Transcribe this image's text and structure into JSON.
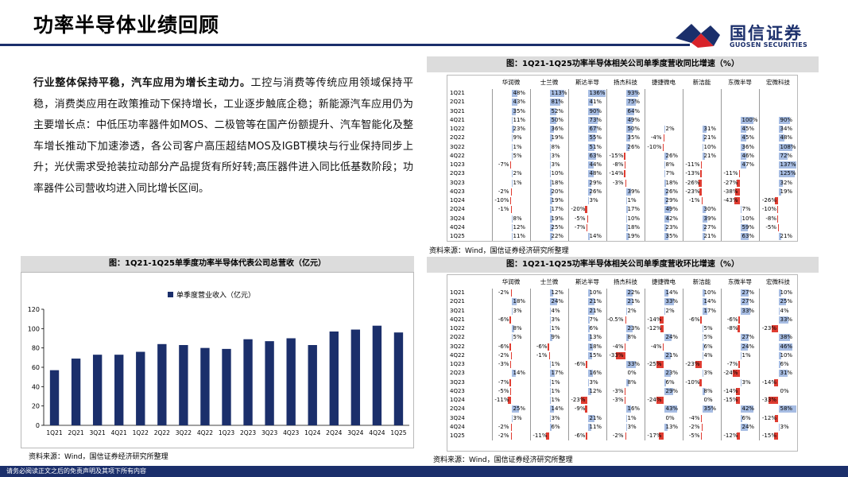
{
  "page": {
    "title": "功率半导体业绩回顾",
    "logo_cn": "国信证券",
    "logo_en": "GUOSEN SECURITIES",
    "footer": "请务必阅读正文之后的免责声明及其项下所有内容",
    "body_bold": "行业整体保持平稳，汽车应用为增长主动力。",
    "body_rest": "工控与消费等传统应用领域保持平稳，消费类应用在政策推动下保持增长，工业逐步触底企稳；新能源汽车应用仍为主要增长点：中低压功率器件如MOS、二极管等在国产份额提升、汽车智能化及整车增长推动下加速渗透，各公司客户高压超结MOS及IGBT模块与行业保持同步上升；光伏需求受抢装拉动部分产品提货有所好转;高压器件进入同比低基数阶段；功率器件公司营收均进入同比增长区间。"
  },
  "bar_chart": {
    "caption": "图：1Q21-1Q25单季度功率半导体代表公司总营收（亿元）",
    "source": "资料来源：Wind，国信证券经济研究所整理"
  },
  "yoy_table": {
    "caption": "图：1Q21-1Q25功率半导体相关公司单季度营收同比增速（%）",
    "source": "资料来源：Wind，国信证券经济研究所整理"
  },
  "qoq_table": {
    "caption": "图：1Q21-1Q25功率半导体相关公司单季度营收环比增速（%）",
    "source": "资料来源：Wind，国信证券经济研究所整理"
  },
  "chart_data": [
    {
      "type": "bar",
      "categories": [
        "1Q21",
        "2Q21",
        "3Q21",
        "4Q21",
        "1Q22",
        "2Q22",
        "3Q22",
        "4Q22",
        "1Q23",
        "2Q23",
        "3Q23",
        "4Q23",
        "1Q24",
        "2Q24",
        "3Q24",
        "4Q24",
        "1Q25"
      ],
      "series": [
        {
          "name": "单季度营业收入（亿元）",
          "values": [
            57,
            69,
            73,
            73,
            76,
            84,
            83,
            80,
            79,
            89,
            87,
            90,
            83,
            97,
            99,
            103,
            96
          ]
        }
      ],
      "ylim": [
        0,
        120
      ],
      "yticks": [
        0,
        20,
        40,
        60,
        80,
        100,
        120
      ],
      "color": "#1b2f6b",
      "legend": "top"
    },
    {
      "type": "table",
      "columns": [
        "华润微",
        "士兰微",
        "斯达半导",
        "扬杰科技",
        "捷捷微电",
        "新洁能",
        "东微半导",
        "宏微科技"
      ],
      "rows": [
        "1Q21",
        "2Q21",
        "3Q21",
        "4Q21",
        "1Q22",
        "2Q22",
        "3Q22",
        "4Q22",
        "1Q23",
        "2Q23",
        "3Q23",
        "4Q23",
        "1Q24",
        "2Q24",
        "3Q24",
        "4Q24",
        "1Q25"
      ],
      "cells": [
        [
          "48%",
          "113%",
          "136%",
          "93%",
          "",
          "",
          "",
          ""
        ],
        [
          "43%",
          "81%",
          "41%",
          "75%",
          "",
          "",
          "",
          ""
        ],
        [
          "35%",
          "52%",
          "90%",
          "64%",
          "",
          "",
          "",
          ""
        ],
        [
          "11%",
          "50%",
          "73%",
          "49%",
          "",
          "",
          "100%",
          "90%"
        ],
        [
          "23%",
          "36%",
          "67%",
          "50%",
          "2%",
          "31%",
          "45%",
          "34%"
        ],
        [
          "9%",
          "19%",
          "55%",
          "35%",
          "-4%",
          "21%",
          "45%",
          "48%"
        ],
        [
          "1%",
          "8%",
          "51%",
          "26%",
          "-10%",
          "10%",
          "36%",
          "108%"
        ],
        [
          "5%",
          "3%",
          "63%",
          "-15%",
          "26%",
          "21%",
          "46%",
          "72%"
        ],
        [
          "-7%",
          "3%",
          "44%",
          "-8%",
          "8%",
          "-11%",
          "47%",
          "137%"
        ],
        [
          "2%",
          "10%",
          "48%",
          "-14%",
          "7%",
          "-13%",
          "-11%",
          "125%"
        ],
        [
          "1%",
          "18%",
          "29%",
          "-3%",
          "18%",
          "-26%",
          "-27%",
          "32%"
        ],
        [
          "-2%",
          "20%",
          "26%",
          "39%",
          "26%",
          "-23%",
          "-38%",
          "19%"
        ],
        [
          "-10%",
          "19%",
          "3%",
          "1%",
          "29%",
          "-1%",
          "-43%",
          "-26%"
        ],
        [
          "-1%",
          "17%",
          "-20%",
          "17%",
          "49%",
          "30%",
          "7%",
          "-10%"
        ],
        [
          "8%",
          "19%",
          "-5%",
          "10%",
          "42%",
          "39%",
          "10%",
          "-8%"
        ],
        [
          "12%",
          "25%",
          "-7%",
          "18%",
          "23%",
          "27%",
          "59%",
          "-5%"
        ],
        [
          "11%",
          "22%",
          "14%",
          "19%",
          "35%",
          "21%",
          "63%",
          "21%"
        ]
      ],
      "values": [
        [
          48,
          113,
          136,
          93,
          null,
          null,
          null,
          null
        ],
        [
          43,
          81,
          41,
          75,
          null,
          null,
          null,
          null
        ],
        [
          35,
          52,
          90,
          64,
          null,
          null,
          null,
          null
        ],
        [
          11,
          50,
          73,
          49,
          null,
          null,
          100,
          90
        ],
        [
          23,
          36,
          67,
          50,
          2,
          31,
          45,
          34
        ],
        [
          9,
          19,
          55,
          35,
          -4,
          21,
          45,
          48
        ],
        [
          1,
          8,
          51,
          26,
          -10,
          10,
          36,
          108
        ],
        [
          5,
          3,
          63,
          -15,
          26,
          21,
          46,
          72
        ],
        [
          -7,
          3,
          44,
          -8,
          8,
          -11,
          47,
          137
        ],
        [
          2,
          10,
          48,
          -14,
          7,
          -13,
          -11,
          125
        ],
        [
          1,
          18,
          29,
          -3,
          18,
          -26,
          -27,
          32
        ],
        [
          -2,
          20,
          26,
          39,
          26,
          -23,
          -38,
          19
        ],
        [
          -10,
          19,
          3,
          1,
          29,
          -1,
          -43,
          -26
        ],
        [
          -1,
          17,
          -20,
          17,
          49,
          30,
          7,
          -10
        ],
        [
          8,
          19,
          -5,
          10,
          42,
          39,
          10,
          -8
        ],
        [
          12,
          25,
          -7,
          18,
          23,
          27,
          59,
          -5
        ],
        [
          11,
          22,
          14,
          19,
          35,
          21,
          63,
          21
        ]
      ],
      "positive_color": "#a7bde3",
      "negative_color": "#e03c31"
    },
    {
      "type": "table",
      "columns": [
        "华润微",
        "士兰微",
        "斯达半导",
        "扬杰科技",
        "捷捷微电",
        "新洁能",
        "东微半导",
        "宏微科技"
      ],
      "rows": [
        "1Q21",
        "2Q21",
        "3Q21",
        "4Q21",
        "1Q22",
        "2Q22",
        "3Q22",
        "4Q22",
        "1Q23",
        "2Q23",
        "3Q23",
        "4Q23",
        "1Q24",
        "2Q24",
        "3Q24",
        "4Q24",
        "1Q25"
      ],
      "cells": [
        [
          "-2%",
          "12%",
          "10%",
          "22%",
          "14%",
          "10%",
          "27%",
          "10%"
        ],
        [
          "18%",
          "24%",
          "21%",
          "21%",
          "33%",
          "14%",
          "27%",
          "25%"
        ],
        [
          "3%",
          "4%",
          "21%",
          "2%",
          "2%",
          "17%",
          "33%",
          "4%"
        ],
        [
          "-6%",
          "3%",
          "7%",
          "-0.5%",
          "-14%",
          "-6%",
          "-6%",
          "33%"
        ],
        [
          "8%",
          "1%",
          "6%",
          "23%",
          "-12%",
          "5%",
          "-8%",
          "-23%"
        ],
        [
          "5%",
          "9%",
          "13%",
          "8%",
          "24%",
          "5%",
          "27%",
          "38%"
        ],
        [
          "-6%",
          "-6%",
          "18%",
          "-4%",
          "-4%",
          "6%",
          "24%",
          "46%"
        ],
        [
          "-2%",
          "-1%",
          "15%",
          "-33%",
          "21%",
          "4%",
          "1%",
          "10%"
        ],
        [
          "-3%",
          "1%",
          "-6%",
          "33%",
          "-25%",
          "-23%",
          "-7%",
          "6%"
        ],
        [
          "14%",
          "17%",
          "16%",
          "0%",
          "23%",
          "3%",
          "-24%",
          "31%"
        ],
        [
          "-7%",
          "1%",
          "3%",
          "8%",
          "6%",
          "-10%",
          "3%",
          "-14%"
        ],
        [
          "-5%",
          "1%",
          "12%",
          "-3%",
          "29%",
          "8%",
          "-14%",
          "0%"
        ],
        [
          "-11%",
          "1%",
          "-23%",
          "-3%",
          "-24%",
          "0%",
          "-15%",
          "-33%"
        ],
        [
          "25%",
          "14%",
          "-9%",
          "16%",
          "43%",
          "35%",
          "42%",
          "58%"
        ],
        [
          "3%",
          "3%",
          "21%",
          "1%",
          "0%",
          "-4%",
          "6%",
          "-12%"
        ],
        [
          "-2%",
          "6%",
          "11%",
          "3%",
          "13%",
          "-2%",
          "24%",
          "3%"
        ],
        [
          "-2%",
          "-11%",
          "-6%",
          "-2%",
          "-17%",
          "-5%",
          "-12%",
          "-15%"
        ]
      ],
      "values": [
        [
          -2,
          12,
          10,
          22,
          14,
          10,
          27,
          10
        ],
        [
          18,
          24,
          21,
          21,
          33,
          14,
          27,
          25
        ],
        [
          3,
          4,
          21,
          2,
          2,
          17,
          33,
          4
        ],
        [
          -6,
          3,
          7,
          -0.5,
          -14,
          -6,
          -6,
          33
        ],
        [
          8,
          1,
          6,
          23,
          -12,
          5,
          -8,
          -23
        ],
        [
          5,
          9,
          13,
          8,
          24,
          5,
          27,
          38
        ],
        [
          -6,
          -6,
          18,
          -4,
          -4,
          6,
          24,
          46
        ],
        [
          -2,
          -1,
          15,
          -33,
          21,
          4,
          1,
          10
        ],
        [
          -3,
          1,
          -6,
          33,
          -25,
          -23,
          -7,
          6
        ],
        [
          14,
          17,
          16,
          0,
          23,
          3,
          -24,
          31
        ],
        [
          -7,
          1,
          3,
          8,
          6,
          -10,
          3,
          -14
        ],
        [
          -5,
          1,
          12,
          -3,
          29,
          8,
          -14,
          0
        ],
        [
          -11,
          1,
          -23,
          -3,
          -24,
          0,
          -15,
          -33
        ],
        [
          25,
          14,
          -9,
          16,
          43,
          35,
          42,
          58
        ],
        [
          3,
          3,
          21,
          1,
          0,
          -4,
          6,
          -12
        ],
        [
          -2,
          6,
          11,
          3,
          13,
          -2,
          24,
          3
        ],
        [
          -2,
          -11,
          -6,
          -2,
          -17,
          -5,
          -12,
          -15
        ]
      ],
      "positive_color": "#a7bde3",
      "negative_color": "#e03c31"
    }
  ]
}
